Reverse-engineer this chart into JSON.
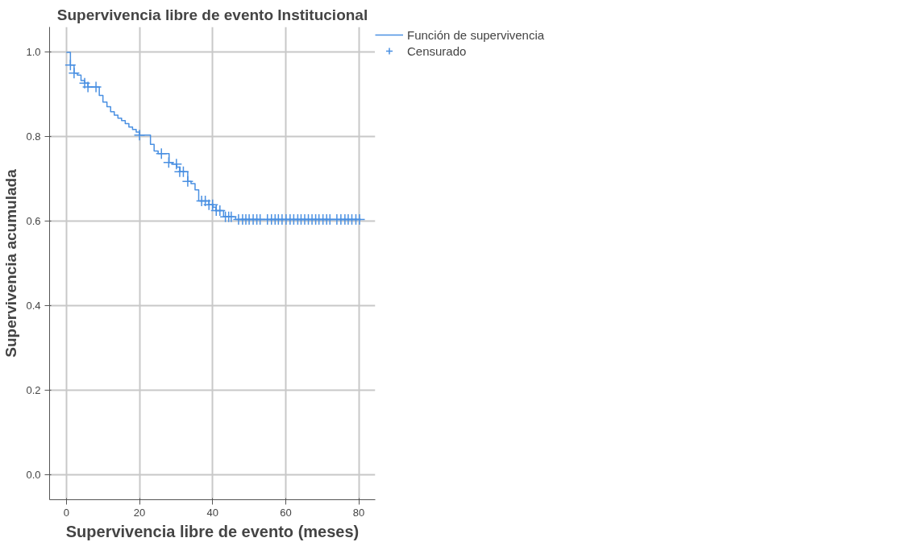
{
  "chart_data": {
    "type": "step",
    "title": "Supervivencia libre de evento Institucional",
    "xlabel": "Supervivencia libre de evento (meses)",
    "ylabel": "Supervivencia acumulada",
    "xlim": [
      -4.6,
      84.5
    ],
    "ylim": [
      -0.06,
      1.06
    ],
    "xticks": [
      0,
      20,
      40,
      60,
      80
    ],
    "yticks": [
      {
        "value": 0,
        "label": "0.0"
      },
      {
        "value": 0.2,
        "label": "0.2"
      },
      {
        "value": 0.4,
        "label": "0.4"
      },
      {
        "value": 0.6,
        "label": "0.6"
      },
      {
        "value": 0.8,
        "label": "0.8"
      },
      {
        "value": 1,
        "label": "1.0"
      }
    ],
    "grid": true,
    "legend": "top right",
    "series": [
      {
        "name": "Función de supervivencia",
        "type": "step",
        "color": "#4a90e2",
        "x": [
          0,
          1.1,
          2.1,
          3.0,
          4.0,
          5.0,
          5.9,
          9.0,
          10.0,
          11.1,
          12.1,
          13.1,
          14.1,
          15.1,
          16.1,
          17.1,
          18.1,
          19.1,
          20.0,
          23.0,
          24.0,
          25.1,
          28.1,
          29.0,
          30.2,
          31.1,
          33.2,
          34.1,
          35.2,
          36.2,
          39.0,
          40.1,
          40.9,
          43.0,
          46.3,
          80.2
        ],
        "values": [
          1.0,
          0.97,
          0.951,
          0.946,
          0.933,
          0.927,
          0.918,
          0.898,
          0.882,
          0.871,
          0.859,
          0.851,
          0.844,
          0.838,
          0.831,
          0.823,
          0.817,
          0.811,
          0.804,
          0.782,
          0.766,
          0.76,
          0.739,
          0.735,
          0.728,
          0.717,
          0.694,
          0.689,
          0.674,
          0.648,
          0.639,
          0.633,
          0.625,
          0.61,
          0.604,
          0.604
        ]
      },
      {
        "name": "Censurado",
        "type": "scatter",
        "marker": "cross",
        "color": "#4a90e2",
        "x": [
          1.1,
          2.1,
          5.0,
          5.9,
          8.1,
          20.0,
          26.0,
          28.0,
          30.1,
          31.0,
          32.0,
          33.2,
          37.0,
          38.0,
          39.0,
          40.0,
          41.0,
          42.0,
          43.5,
          44.4,
          45.1,
          47.1,
          48.2,
          49.1,
          50.0,
          51.1,
          52.1,
          53.0,
          55.0,
          56.1,
          57.1,
          58.0,
          59.0,
          60.1,
          61.2,
          62.2,
          63.3,
          64.2,
          65.2,
          66.2,
          67.2,
          68.2,
          69.1,
          70.2,
          71.2,
          72.1,
          74.0,
          75.1,
          76.2,
          77.1,
          78.1,
          79.2,
          80.2
        ],
        "values": [
          0.97,
          0.951,
          0.927,
          0.918,
          0.918,
          0.804,
          0.76,
          0.739,
          0.735,
          0.717,
          0.717,
          0.694,
          0.648,
          0.648,
          0.639,
          0.639,
          0.625,
          0.625,
          0.61,
          0.61,
          0.61,
          0.604,
          0.604,
          0.604,
          0.604,
          0.604,
          0.604,
          0.604,
          0.604,
          0.604,
          0.604,
          0.604,
          0.604,
          0.604,
          0.604,
          0.604,
          0.604,
          0.604,
          0.604,
          0.604,
          0.604,
          0.604,
          0.604,
          0.604,
          0.604,
          0.604,
          0.604,
          0.604,
          0.604,
          0.604,
          0.604,
          0.604,
          0.604
        ]
      }
    ]
  }
}
